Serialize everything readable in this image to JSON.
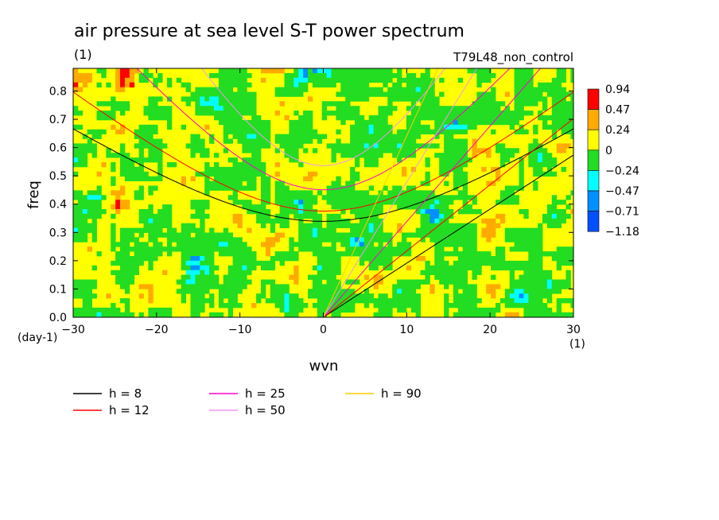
{
  "title": "air pressure at sea level S-T power spectrum",
  "subtitle_left": "(1)",
  "subtitle_right": "T79L48_non_control",
  "colors": {
    "levels": [
      "#0050ff",
      "#0090ff",
      "#00ffff",
      "#22dd22",
      "#ffff00",
      "#ffaa00",
      "#ff0000"
    ],
    "curves": {
      "h8": "#000000",
      "h12": "#ff0000",
      "h25": "#ff00cc",
      "h50": "#ee99ee",
      "h90": "#ffcc00"
    }
  },
  "chart_data": {
    "type": "heatmap",
    "xlabel": "wvn",
    "ylabel": "freq",
    "x_unit": "(1)",
    "y_unit": "(day-1)",
    "xlim": [
      -30,
      30
    ],
    "ylim": [
      0.0,
      0.88
    ],
    "x_ticks": [
      "−30",
      "−20",
      "−10",
      "0",
      "10",
      "20",
      "30"
    ],
    "x_tick_values": [
      -30,
      -20,
      -10,
      0,
      10,
      20,
      30
    ],
    "y_ticks": [
      "0.0",
      "0.1",
      "0.2",
      "0.3",
      "0.4",
      "0.5",
      "0.6",
      "0.7",
      "0.8"
    ],
    "y_tick_values": [
      0.0,
      0.1,
      0.2,
      0.3,
      0.4,
      0.5,
      0.6,
      0.7,
      0.8
    ],
    "colorbar_labels": [
      "0.94",
      "0.47",
      "0.24",
      "0",
      "−0.24",
      "−0.47",
      "−0.71",
      "−1.18"
    ],
    "level_bounds": [
      -1.18,
      -0.71,
      -0.47,
      -0.24,
      0,
      0.24,
      0.47,
      0.94
    ],
    "legend": [
      {
        "label": "h =  8",
        "key": "h8"
      },
      {
        "label": "h = 12",
        "key": "h12"
      },
      {
        "label": "h = 25",
        "key": "h25"
      },
      {
        "label": "h = 50",
        "key": "h50"
      },
      {
        "label": "h = 90",
        "key": "h90"
      }
    ],
    "dispersion_curves": [
      {
        "name": "h =  8",
        "key": "h8",
        "family": "kelvin"
      },
      {
        "name": "h =  8",
        "key": "h8",
        "family": "inertia-gravity"
      },
      {
        "name": "h = 12",
        "key": "h12",
        "family": "kelvin"
      },
      {
        "name": "h = 12",
        "key": "h12",
        "family": "inertia-gravity"
      },
      {
        "name": "h = 25",
        "key": "h25",
        "family": "kelvin"
      },
      {
        "name": "h = 25",
        "key": "h25",
        "family": "inertia-gravity"
      },
      {
        "name": "h = 50",
        "key": "h50",
        "family": "kelvin"
      },
      {
        "name": "h = 50",
        "key": "h50",
        "family": "inertia-gravity"
      },
      {
        "name": "h = 90",
        "key": "h90",
        "family": "kelvin"
      }
    ]
  }
}
